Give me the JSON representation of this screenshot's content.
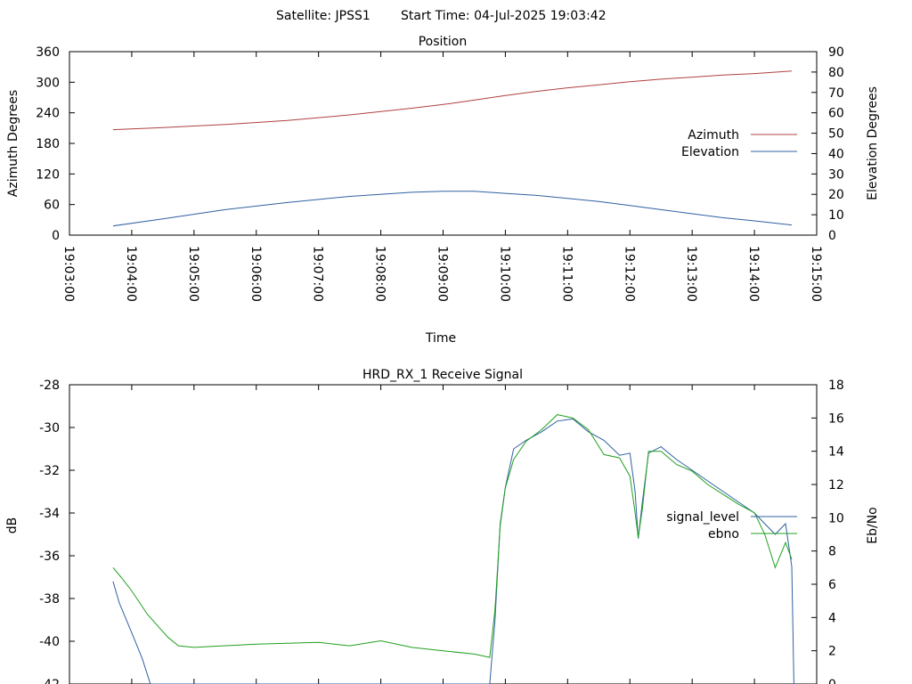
{
  "header": {
    "satellite_label": "Satellite: JPSS1",
    "start_time_label": "Start Time: 04-Jul-2025 19:03:42"
  },
  "chart_data": [
    {
      "type": "line",
      "title": "Position",
      "xlabel": "Time",
      "ylabel": "Azimuth Degrees",
      "y2label": "Elevation Degrees",
      "x_ticks": [
        "19:03:00",
        "19:04:00",
        "19:05:00",
        "19:06:00",
        "19:07:00",
        "19:08:00",
        "19:09:00",
        "19:10:00",
        "19:11:00",
        "19:12:00",
        "19:13:00",
        "19:14:00",
        "19:15:00"
      ],
      "ylim": [
        0,
        360
      ],
      "y_ticks": [
        0,
        60,
        120,
        180,
        240,
        300,
        360
      ],
      "y2lim": [
        0,
        90
      ],
      "y2_ticks": [
        0,
        10,
        20,
        30,
        40,
        50,
        60,
        70,
        80,
        90
      ],
      "legend_position": "right",
      "grid": false,
      "series": [
        {
          "name": "Azimuth",
          "axis": "y",
          "color": "#b04040",
          "points": [
            [
              "19:03:42",
              207
            ],
            [
              "19:04:30",
              211
            ],
            [
              "19:05:30",
              217
            ],
            [
              "19:06:30",
              225
            ],
            [
              "19:07:30",
              236
            ],
            [
              "19:08:30",
              249
            ],
            [
              "19:09:10",
              259
            ],
            [
              "19:09:30",
              265
            ],
            [
              "19:10:00",
              274
            ],
            [
              "19:10:30",
              282
            ],
            [
              "19:11:00",
              289
            ],
            [
              "19:11:30",
              295
            ],
            [
              "19:12:00",
              301
            ],
            [
              "19:12:30",
              306
            ],
            [
              "19:13:00",
              310
            ],
            [
              "19:13:30",
              314
            ],
            [
              "19:14:00",
              317
            ],
            [
              "19:14:36",
              322
            ]
          ]
        },
        {
          "name": "Elevation",
          "axis": "y2",
          "color": "#3060a0",
          "points": [
            [
              "19:03:42",
              4.5
            ],
            [
              "19:04:30",
              8
            ],
            [
              "19:05:30",
              12.5
            ],
            [
              "19:06:30",
              16
            ],
            [
              "19:07:30",
              19
            ],
            [
              "19:08:30",
              21
            ],
            [
              "19:09:00",
              21.5
            ],
            [
              "19:09:30",
              21.5
            ],
            [
              "19:10:00",
              20.5
            ],
            [
              "19:10:30",
              19.5
            ],
            [
              "19:11:00",
              18
            ],
            [
              "19:11:30",
              16.5
            ],
            [
              "19:12:00",
              14.5
            ],
            [
              "19:12:30",
              12.5
            ],
            [
              "19:13:00",
              10.5
            ],
            [
              "19:13:30",
              8.5
            ],
            [
              "19:14:00",
              7
            ],
            [
              "19:14:36",
              5
            ]
          ]
        }
      ]
    },
    {
      "type": "line",
      "title": "HRD_RX_1 Receive Signal",
      "xlabel": "",
      "ylabel": "dB",
      "y2label": "Eb/No",
      "x_range": [
        "19:03:00",
        "19:15:00"
      ],
      "ylim": [
        -42,
        -28
      ],
      "y_ticks": [
        -42,
        -40,
        -38,
        -36,
        -34,
        -32,
        -30,
        -28
      ],
      "y2lim": [
        0,
        18
      ],
      "y2_ticks": [
        0,
        2,
        4,
        6,
        8,
        10,
        12,
        14,
        16,
        18
      ],
      "legend_position": "right",
      "grid": false,
      "series": [
        {
          "name": "signal_level",
          "axis": "y",
          "color": "#3060a0",
          "points": [
            [
              "19:03:42",
              -37.2
            ],
            [
              "19:03:48",
              -38.2
            ],
            [
              "19:04:00",
              -39.6
            ],
            [
              "19:04:10",
              -40.8
            ],
            [
              "19:04:18",
              -42
            ],
            [
              "19:09:45",
              -42
            ],
            [
              "19:09:50",
              -39
            ],
            [
              "19:09:55",
              -34.5
            ],
            [
              "19:10:00",
              -32.8
            ],
            [
              "19:10:08",
              -31
            ],
            [
              "19:10:20",
              -30.6
            ],
            [
              "19:10:35",
              -30.2
            ],
            [
              "19:10:50",
              -29.7
            ],
            [
              "19:11:05",
              -29.6
            ],
            [
              "19:11:20",
              -30.2
            ],
            [
              "19:11:35",
              -30.6
            ],
            [
              "19:11:50",
              -31.3
            ],
            [
              "19:12:00",
              -31.2
            ],
            [
              "19:12:05",
              -33
            ],
            [
              "19:12:08",
              -35.2
            ],
            [
              "19:12:12",
              -33.5
            ],
            [
              "19:12:18",
              -31.2
            ],
            [
              "19:12:30",
              -30.9
            ],
            [
              "19:12:45",
              -31.5
            ],
            [
              "19:13:00",
              -32
            ],
            [
              "19:13:15",
              -32.5
            ],
            [
              "19:13:30",
              -33
            ],
            [
              "19:13:45",
              -33.5
            ],
            [
              "19:14:00",
              -34
            ],
            [
              "19:14:10",
              -34.5
            ],
            [
              "19:14:20",
              -35
            ],
            [
              "19:14:30",
              -34.5
            ],
            [
              "19:14:36",
              -36.5
            ],
            [
              "19:14:38",
              -42
            ]
          ]
        },
        {
          "name": "ebno",
          "axis": "y2",
          "color": "#20a020",
          "points": [
            [
              "19:03:42",
              7.0
            ],
            [
              "19:03:50",
              6.4
            ],
            [
              "19:04:00",
              5.6
            ],
            [
              "19:04:15",
              4.2
            ],
            [
              "19:04:25",
              3.5
            ],
            [
              "19:04:35",
              2.8
            ],
            [
              "19:04:45",
              2.3
            ],
            [
              "19:05:00",
              2.2
            ],
            [
              "19:06:00",
              2.4
            ],
            [
              "19:07:00",
              2.5
            ],
            [
              "19:07:30",
              2.3
            ],
            [
              "19:08:00",
              2.6
            ],
            [
              "19:08:30",
              2.2
            ],
            [
              "19:09:00",
              2.0
            ],
            [
              "19:09:30",
              1.8
            ],
            [
              "19:09:45",
              1.6
            ],
            [
              "19:09:50",
              4.5
            ],
            [
              "19:09:55",
              9.5
            ],
            [
              "19:10:00",
              11.8
            ],
            [
              "19:10:08",
              13.5
            ],
            [
              "19:10:20",
              14.6
            ],
            [
              "19:10:35",
              15.3
            ],
            [
              "19:10:50",
              16.2
            ],
            [
              "19:11:05",
              16.0
            ],
            [
              "19:11:20",
              15.3
            ],
            [
              "19:11:35",
              13.8
            ],
            [
              "19:11:50",
              13.6
            ],
            [
              "19:12:00",
              12.5
            ],
            [
              "19:12:05",
              10.3
            ],
            [
              "19:12:08",
              8.8
            ],
            [
              "19:12:12",
              10.5
            ],
            [
              "19:12:18",
              14.0
            ],
            [
              "19:12:30",
              14.0
            ],
            [
              "19:12:45",
              13.2
            ],
            [
              "19:13:00",
              12.8
            ],
            [
              "19:13:15",
              12.0
            ],
            [
              "19:13:30",
              11.4
            ],
            [
              "19:13:45",
              10.8
            ],
            [
              "19:14:00",
              10.3
            ],
            [
              "19:14:10",
              9.0
            ],
            [
              "19:14:20",
              7.0
            ],
            [
              "19:14:30",
              8.5
            ],
            [
              "19:14:36",
              7.5
            ]
          ]
        }
      ]
    }
  ]
}
